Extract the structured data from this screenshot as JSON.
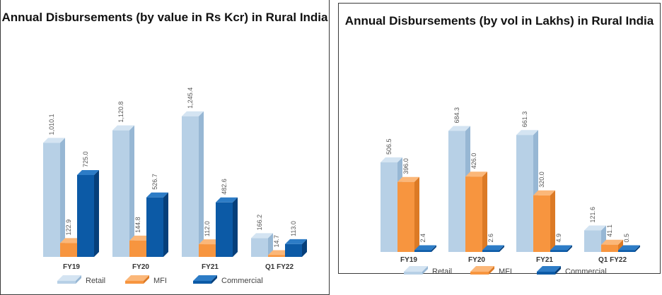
{
  "chart_data": [
    {
      "type": "bar",
      "title": "Annual Disbursements (by value in Rs Kcr) in Rural  India",
      "categories": [
        "FY19",
        "FY20",
        "FY21",
        "Q1 FY22"
      ],
      "series": [
        {
          "name": "Retail",
          "values": [
            1010.1,
            1120.8,
            1245.4,
            166.2
          ],
          "labels": [
            "1,010.1",
            "1,120.8",
            "1,245.4",
            "166.2"
          ]
        },
        {
          "name": "MFI",
          "values": [
            122.9,
            144.8,
            112.0,
            14.7
          ],
          "labels": [
            "122.9",
            "144.8",
            "112.0",
            "14.7"
          ]
        },
        {
          "name": "Commercial",
          "values": [
            725.0,
            526.7,
            482.6,
            113.0
          ],
          "labels": [
            "725.0",
            "526.7",
            "482.6",
            "113.0"
          ]
        }
      ],
      "ylim": [
        0,
        1400
      ],
      "legend_position": "bottom",
      "grid": false
    },
    {
      "type": "bar",
      "title": "Annual Disbursements (by vol in Lakhs) in Rural India",
      "categories": [
        "FY19",
        "FY20",
        "FY21",
        "Q1 FY22"
      ],
      "series": [
        {
          "name": "Retail",
          "values": [
            506.5,
            684.3,
            661.3,
            121.6
          ],
          "labels": [
            "506.5",
            "684.3",
            "661.3",
            "121.6"
          ]
        },
        {
          "name": "MFI",
          "values": [
            396.0,
            426.0,
            320.0,
            41.1
          ],
          "labels": [
            "396.0",
            "426.0",
            "320.0",
            "41.1"
          ]
        },
        {
          "name": "Commercial",
          "values": [
            2.4,
            2.6,
            4.9,
            0.5
          ],
          "labels": [
            "2.4",
            "2.6",
            "4.9",
            "0.5"
          ]
        }
      ],
      "ylim": [
        0,
        750
      ],
      "legend_position": "bottom",
      "grid": false
    }
  ],
  "colors": {
    "Retail": {
      "front": "#b7d0e6",
      "side": "#97b7d4",
      "top": "#d4e4f2"
    },
    "MFI": {
      "front": "#f7953f",
      "side": "#dc7a25",
      "top": "#fbb779"
    },
    "Commercial": {
      "front": "#0c5aa6",
      "side": "#063f7a",
      "top": "#2d7cc6"
    }
  }
}
